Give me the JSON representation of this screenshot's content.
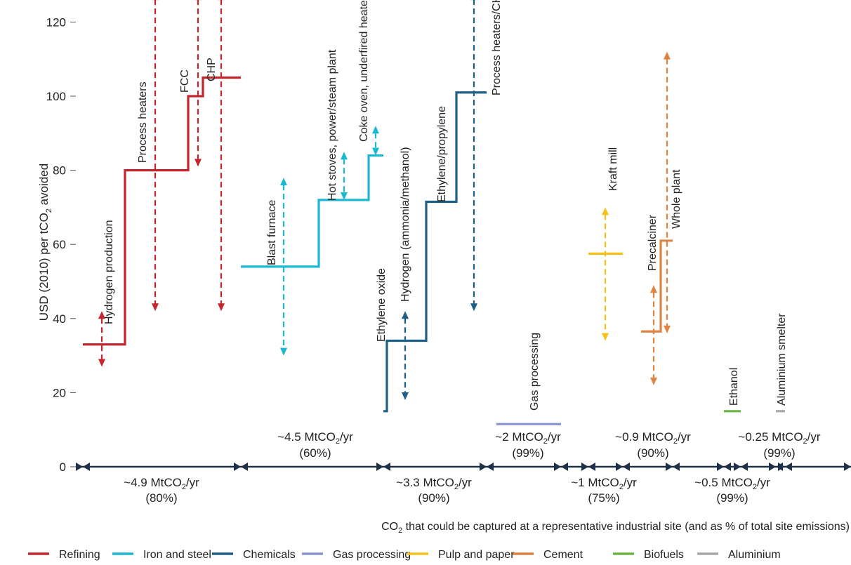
{
  "chart_data": {
    "type": "line",
    "ylabel_main": "USD (2010) per tCO",
    "ylabel_sub": "2",
    "ylabel_tail": " avoided",
    "ylim": [
      0,
      125
    ],
    "yticks": [
      0,
      20,
      40,
      60,
      80,
      100,
      120
    ],
    "xlabel_pre": "CO",
    "xlabel_sub": "2",
    "xlabel_post": " that could be captured at a representative industrial site (and as % of total site emissions)",
    "grid": false,
    "legend_position": "bottom",
    "colors": {
      "Refining": "#c4262e",
      "Iron and steel": "#1cb8d3",
      "Chemicals": "#1d5f85",
      "Gas processing": "#8c95d3",
      "Pulp and paper": "#f6c11b",
      "Cement": "#e08444",
      "Biofuels": "#6db544",
      "Aluminium": "#a8a8a8",
      "axis": "#1f3147"
    },
    "legend": [
      "Refining",
      "Iron and steel",
      "Chemicals",
      "Gas processing",
      "Pulp and paper",
      "Cement",
      "Biofuels",
      "Aluminium"
    ],
    "series": [
      {
        "name": "Refining",
        "steps": [
          {
            "label": "Hydrogen production",
            "cost": 33,
            "range": [
              27,
              42
            ]
          },
          {
            "label": "Process heaters",
            "cost": 80,
            "range": [
              42,
              128
            ]
          },
          {
            "label": "FCC",
            "cost": 100,
            "range": [
              81,
              128
            ]
          },
          {
            "label": "CHP",
            "cost": 105,
            "range": [
              42,
              128
            ]
          }
        ]
      },
      {
        "name": "Iron and steel",
        "steps": [
          {
            "label": "Blast furnace",
            "cost": 54,
            "range": [
              30,
              78
            ]
          },
          {
            "label": "Hot stoves, power/steam plant",
            "cost": 72,
            "range": [
              72,
              85
            ]
          },
          {
            "label": "Coke oven, underfired heaters",
            "cost": 84,
            "range": [
              84,
              92
            ]
          }
        ]
      },
      {
        "name": "Chemicals",
        "steps": [
          {
            "label": "Ethylene oxide",
            "cost": 15,
            "range": null
          },
          {
            "label": "Hydrogen (ammonia/methanol)",
            "cost": 34,
            "range": [
              18,
              42
            ]
          },
          {
            "label": "Ethylene/propylene",
            "cost": 71.5,
            "range": null
          },
          {
            "label": "Process heaters/CHP",
            "cost": 101,
            "range": [
              42,
              128
            ]
          }
        ]
      },
      {
        "name": "Gas processing",
        "steps": [
          {
            "label": "Gas processing",
            "cost": 11.5,
            "range": null
          }
        ]
      },
      {
        "name": "Pulp and paper",
        "steps": [
          {
            "label": "Kraft mill",
            "cost": 57.5,
            "range": [
              34,
              70
            ]
          }
        ]
      },
      {
        "name": "Cement",
        "steps": [
          {
            "label": "Precalciner",
            "cost": 36.5,
            "range": [
              22,
              49
            ]
          },
          {
            "label": "Whole plant",
            "cost": 61,
            "range": [
              36,
              112
            ]
          }
        ]
      },
      {
        "name": "Biofuels",
        "steps": [
          {
            "label": "Ethanol",
            "cost": 15,
            "range": null
          }
        ]
      },
      {
        "name": "Aluminium",
        "steps": [
          {
            "label": "Aluminium smelter",
            "cost": 15,
            "range": null
          }
        ]
      }
    ],
    "capture_labels": [
      {
        "series": "Refining",
        "main": "~4.9 MtCO",
        "sub": "2",
        "tail": "/yr",
        "pct": "(80%)"
      },
      {
        "series": "Iron and steel",
        "main": "~4.5 MtCO",
        "sub": "2",
        "tail": "/yr",
        "pct": "(60%)"
      },
      {
        "series": "Chemicals",
        "main": "~3.3 MtCO",
        "sub": "2",
        "tail": "/yr",
        "pct": "(90%)"
      },
      {
        "series": "Gas processing",
        "main": "~2 MtCO",
        "sub": "2",
        "tail": "/yr",
        "pct": "(99%)"
      },
      {
        "series": "Pulp and paper",
        "main": "~1 MtCO",
        "sub": "2",
        "tail": "/yr",
        "pct": "(75%)"
      },
      {
        "series": "Cement",
        "main": "~0.9 MtCO",
        "sub": "2",
        "tail": "/yr",
        "pct": "(90%)"
      },
      {
        "series": "Biofuels",
        "main": "~0.5 MtCO",
        "sub": "2",
        "tail": "/yr",
        "pct": "(99%)"
      },
      {
        "series": "Aluminium",
        "main": "~0.25 MtCO",
        "sub": "2",
        "tail": "/yr",
        "pct": "(99%)"
      }
    ]
  }
}
